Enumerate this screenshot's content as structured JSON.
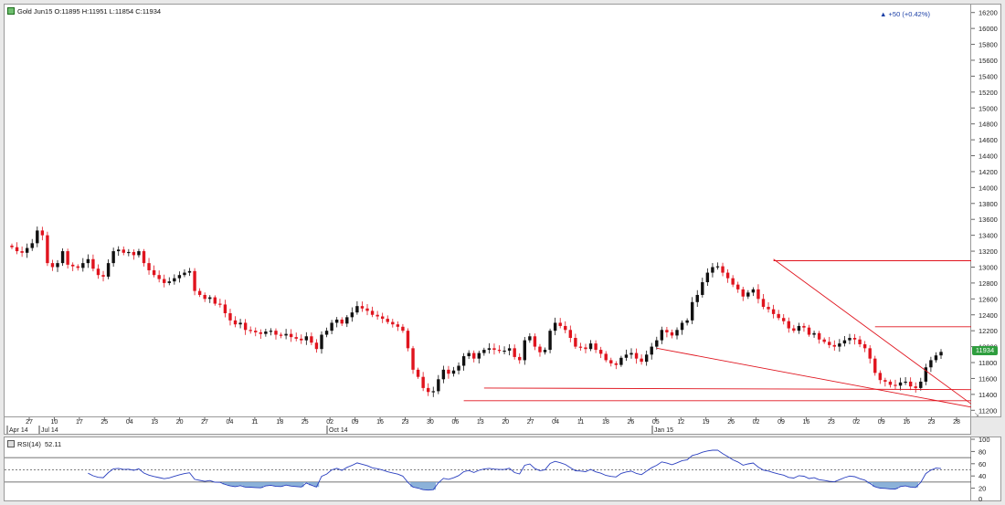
{
  "header": {
    "symbol_label": "Gold Jun15 O:11895 H:11951 L:11854 C:11934",
    "change_label": "+50 (+0.42%)",
    "last_price_label": "11934",
    "rsi_label": "RSI(14)",
    "rsi_value": "52.11"
  },
  "colors": {
    "up": "#111111",
    "down": "#e0141e",
    "trendline": "#e0141e",
    "rsi_line": "#2a3fbf",
    "rsi_fill": "#6f9fcf",
    "accent_last": "#2e9e3e"
  },
  "chart_data": [
    {
      "type": "candlestick",
      "title": "Gold Jun15",
      "ylim": [
        11100,
        16300
      ],
      "yticks": [
        11200,
        11400,
        11600,
        11800,
        12000,
        12200,
        12400,
        12600,
        12800,
        13000,
        13200,
        13400,
        13600,
        13800,
        14000,
        14200,
        14400,
        14600,
        14800,
        15000,
        15200,
        15400,
        15600,
        15800,
        16000,
        16200
      ],
      "x_day_ticks": [
        "27",
        "10",
        "17",
        "25",
        "04",
        "13",
        "20",
        "27",
        "04",
        "11",
        "18",
        "25",
        "02",
        "09",
        "16",
        "23",
        "30",
        "06",
        "13",
        "20",
        "27",
        "04",
        "11",
        "18",
        "26",
        "05",
        "12",
        "19",
        "26",
        "02",
        "09",
        "16",
        "23",
        "02",
        "09",
        "16",
        "23",
        "28"
      ],
      "x_month_ticks": [
        "Apr 14",
        "Jul 14",
        "Oct 14",
        "Jan 15"
      ],
      "close_series": [
        13250,
        13200,
        13180,
        13240,
        13300,
        13460,
        13400,
        13050,
        13000,
        13050,
        13200,
        13030,
        13010,
        12990,
        13050,
        13100,
        12980,
        12900,
        12880,
        13050,
        13200,
        13220,
        13180,
        13190,
        13150,
        13200,
        13050,
        12960,
        12900,
        12850,
        12800,
        12820,
        12860,
        12900,
        12930,
        12950,
        12700,
        12650,
        12600,
        12620,
        12540,
        12530,
        12420,
        12330,
        12280,
        12300,
        12210,
        12200,
        12180,
        12160,
        12190,
        12200,
        12150,
        12140,
        12160,
        12120,
        12100,
        12080,
        12130,
        12050,
        11970,
        12150,
        12200,
        12300,
        12340,
        12290,
        12370,
        12430,
        12510,
        12480,
        12450,
        12400,
        12380,
        12350,
        12310,
        12280,
        12250,
        12200,
        11980,
        11710,
        11620,
        11480,
        11430,
        11440,
        11590,
        11710,
        11660,
        11700,
        11760,
        11880,
        11920,
        11850,
        11920,
        11960,
        11980,
        11960,
        11950,
        11950,
        11980,
        11870,
        11830,
        12080,
        12130,
        12000,
        11930,
        11960,
        12200,
        12300,
        12260,
        12210,
        12110,
        12000,
        11990,
        11970,
        12040,
        11960,
        11910,
        11830,
        11790,
        11770,
        11860,
        11900,
        11920,
        11850,
        11810,
        11900,
        12000,
        12080,
        12210,
        12180,
        12140,
        12210,
        12300,
        12330,
        12560,
        12650,
        12810,
        12930,
        13000,
        13010,
        12930,
        12860,
        12780,
        12720,
        12630,
        12680,
        12720,
        12600,
        12500,
        12470,
        12410,
        12360,
        12320,
        12230,
        12200,
        12260,
        12240,
        12150,
        12170,
        12090,
        12060,
        12020,
        12000,
        12040,
        12080,
        12110,
        12090,
        12030,
        11980,
        11850,
        11670,
        11580,
        11560,
        11520,
        11510,
        11550,
        11560,
        11500,
        11480,
        11560,
        11740,
        11830,
        11890,
        11934
      ]
    },
    {
      "type": "line",
      "title": "RSI(14)",
      "ylim": [
        0,
        100
      ],
      "yticks": [
        20,
        40,
        60,
        80,
        100
      ],
      "levels": [
        30,
        50,
        70
      ],
      "last_value": 52.11
    }
  ]
}
